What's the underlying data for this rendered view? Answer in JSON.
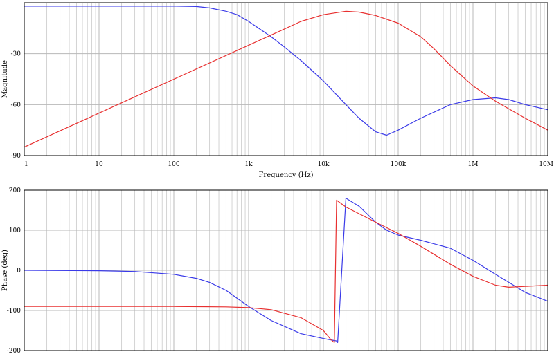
{
  "chart_data": [
    {
      "type": "line",
      "xlabel": "Frequency (Hz)",
      "ylabel": "Magnitude",
      "xscale": "log",
      "xlim": [
        1,
        10000000
      ],
      "ylim": [
        -90,
        0
      ],
      "x_ticks": [
        1,
        10,
        100,
        1000,
        10000,
        100000,
        1000000,
        10000000
      ],
      "x_tick_labels": [
        "1",
        "10",
        "100",
        "1k",
        "10k",
        "100k",
        "1M",
        "10M"
      ],
      "y_ticks": [
        -90,
        -60,
        -30
      ],
      "y_tick_labels": [
        "-90",
        "-60",
        "-30"
      ],
      "grid": true,
      "series": [
        {
          "color": "#3a3ae8",
          "points": [
            [
              1,
              -2
            ],
            [
              10,
              -2
            ],
            [
              100,
              -2
            ],
            [
              200,
              -2.2
            ],
            [
              300,
              -3
            ],
            [
              500,
              -5
            ],
            [
              700,
              -7
            ],
            [
              1000,
              -11
            ],
            [
              2000,
              -20
            ],
            [
              3000,
              -26
            ],
            [
              5000,
              -34
            ],
            [
              10000,
              -46
            ],
            [
              20000,
              -60
            ],
            [
              30000,
              -68
            ],
            [
              50000,
              -76
            ],
            [
              70000,
              -78
            ],
            [
              100000,
              -75
            ],
            [
              200000,
              -68
            ],
            [
              500000,
              -60
            ],
            [
              1000000,
              -57
            ],
            [
              2000000,
              -56
            ],
            [
              3000000,
              -57
            ],
            [
              5000000,
              -60
            ],
            [
              10000000,
              -63
            ]
          ]
        },
        {
          "color": "#e83030",
          "points": [
            [
              1,
              -85
            ],
            [
              10,
              -65
            ],
            [
              100,
              -45
            ],
            [
              1000,
              -25
            ],
            [
              2000,
              -19
            ],
            [
              3000,
              -15.5
            ],
            [
              5000,
              -11
            ],
            [
              10000,
              -7
            ],
            [
              20000,
              -5
            ],
            [
              30000,
              -5.5
            ],
            [
              50000,
              -7.5
            ],
            [
              100000,
              -12
            ],
            [
              200000,
              -20
            ],
            [
              300000,
              -27
            ],
            [
              500000,
              -37
            ],
            [
              1000000,
              -49
            ],
            [
              2000000,
              -58
            ],
            [
              5000000,
              -68
            ],
            [
              10000000,
              -75
            ]
          ]
        }
      ]
    },
    {
      "type": "line",
      "xlabel": "",
      "ylabel": "Phase (deg)",
      "xscale": "log",
      "xlim": [
        1,
        10000000
      ],
      "ylim": [
        -200,
        200
      ],
      "x_ticks": [
        1,
        10,
        100,
        1000,
        10000,
        100000,
        1000000,
        10000000
      ],
      "y_ticks": [
        -200,
        -100,
        0,
        100,
        200
      ],
      "y_tick_labels": [
        "-200",
        "-100",
        "0",
        "100",
        "200"
      ],
      "grid": true,
      "series": [
        {
          "color": "#3a3ae8",
          "points": [
            [
              1,
              0
            ],
            [
              10,
              -1
            ],
            [
              30,
              -3
            ],
            [
              100,
              -10
            ],
            [
              200,
              -20
            ],
            [
              300,
              -30
            ],
            [
              500,
              -50
            ],
            [
              1000,
              -90
            ],
            [
              2000,
              -125
            ],
            [
              5000,
              -158
            ],
            [
              10000,
              -170
            ],
            [
              15000,
              -176
            ],
            [
              15500,
              -180
            ],
            [
              20000,
              180
            ],
            [
              30000,
              160
            ],
            [
              50000,
              120
            ],
            [
              70000,
              100
            ],
            [
              100000,
              88
            ],
            [
              200000,
              75
            ],
            [
              500000,
              55
            ],
            [
              1000000,
              25
            ],
            [
              2000000,
              -10
            ],
            [
              5000000,
              -55
            ],
            [
              10000000,
              -77
            ]
          ]
        },
        {
          "color": "#e83030",
          "points": [
            [
              1,
              -90
            ],
            [
              100,
              -90
            ],
            [
              500,
              -91
            ],
            [
              1000,
              -93
            ],
            [
              2000,
              -98
            ],
            [
              5000,
              -118
            ],
            [
              10000,
              -150
            ],
            [
              12500,
              -172
            ],
            [
              14000,
              -180
            ],
            [
              15000,
              175
            ],
            [
              20000,
              158
            ],
            [
              50000,
              120
            ],
            [
              100000,
              92
            ],
            [
              200000,
              60
            ],
            [
              500000,
              15
            ],
            [
              1000000,
              -15
            ],
            [
              2000000,
              -37
            ],
            [
              3000000,
              -42
            ],
            [
              5000000,
              -40
            ],
            [
              10000000,
              -37
            ]
          ]
        }
      ]
    }
  ]
}
